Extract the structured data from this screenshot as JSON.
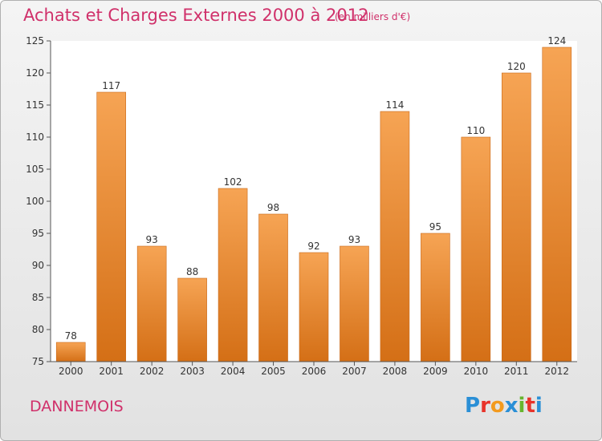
{
  "header": {
    "title": "Achats et Charges Externes 2000 à 2012",
    "subtitle": "(en milliers d'€)"
  },
  "footer": {
    "location": "DANNEMOIS",
    "logo": {
      "letters": [
        "P",
        "r",
        "o",
        "x",
        "i",
        "t",
        "i"
      ],
      "colors": [
        "#2a8fd6",
        "#e8332a",
        "#f39a1e",
        "#2a8fd6",
        "#67b52e",
        "#e8332a",
        "#2a8fd6"
      ]
    }
  },
  "colors": {
    "bar_top": "#f6a454",
    "bar_bottom": "#d46f16",
    "accent": "#d0306a"
  },
  "chart_data": {
    "type": "bar",
    "categories": [
      "2000",
      "2001",
      "2002",
      "2003",
      "2004",
      "2005",
      "2006",
      "2007",
      "2008",
      "2009",
      "2010",
      "2011",
      "2012"
    ],
    "values": [
      78,
      117,
      93,
      88,
      102,
      98,
      92,
      93,
      114,
      95,
      110,
      120,
      124
    ],
    "title": "Achats et Charges Externes 2000 à 2012",
    "subtitle": "(en milliers d'€)",
    "ylim": [
      75,
      125
    ],
    "yticks": [
      75,
      80,
      85,
      90,
      95,
      100,
      105,
      110,
      115,
      120,
      125
    ],
    "grid": false
  }
}
